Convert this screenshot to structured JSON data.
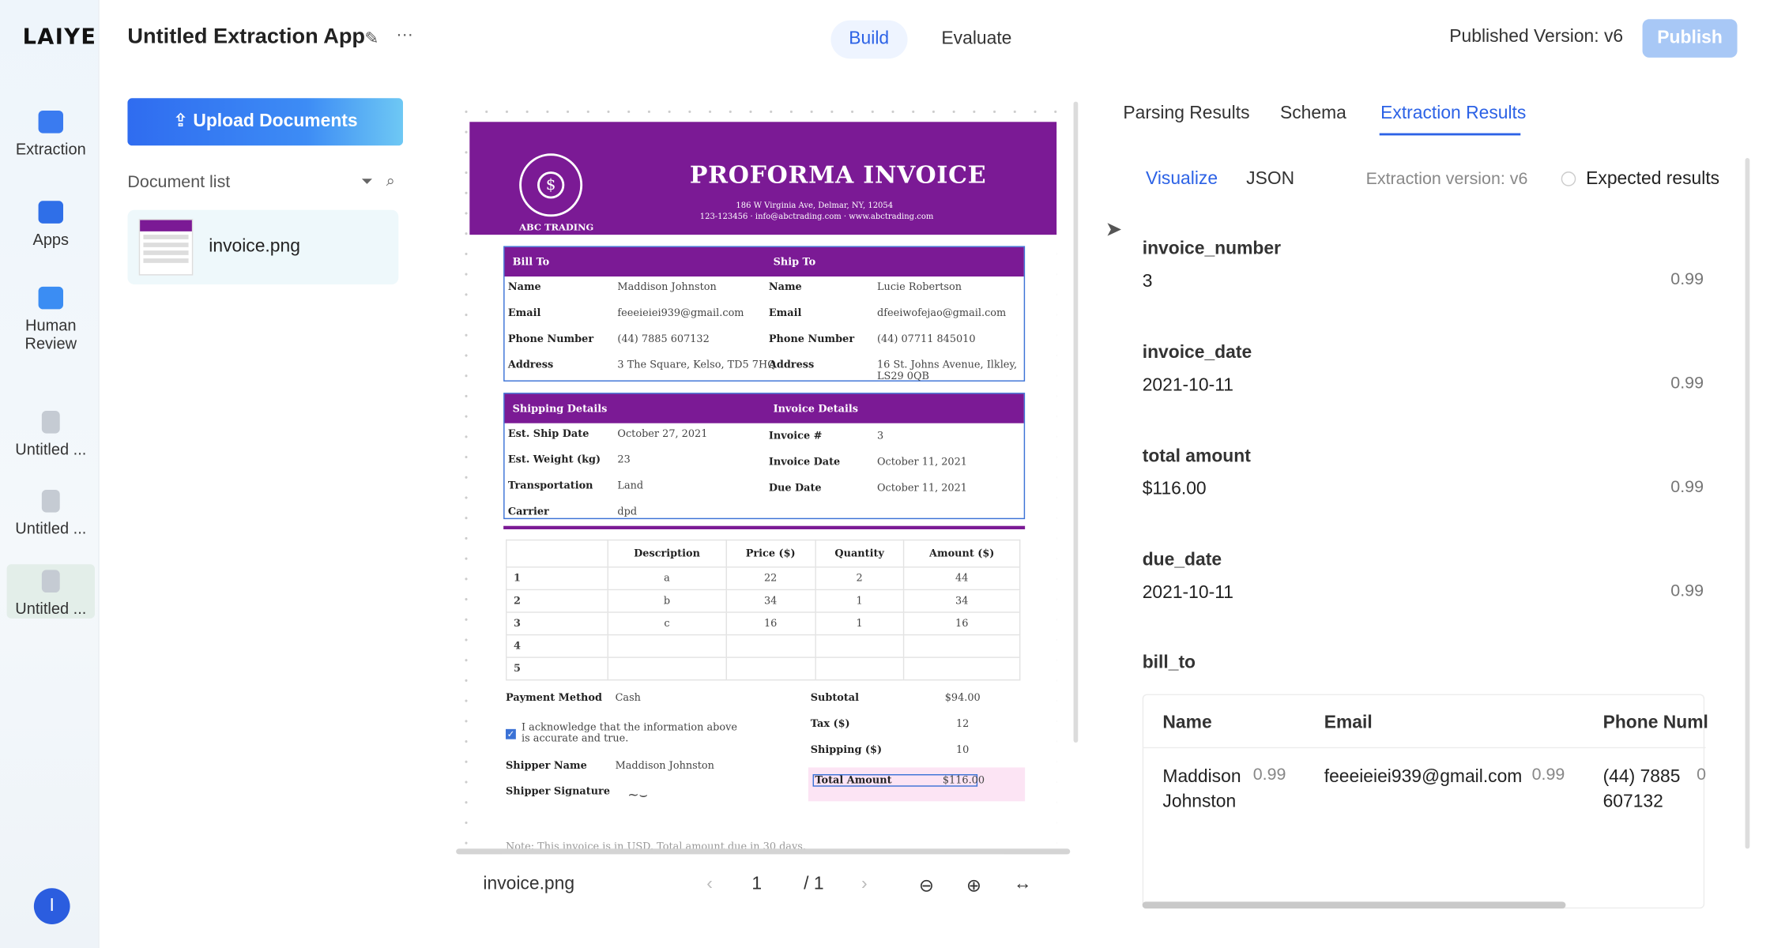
{
  "rail": {
    "logo": "LAIYE",
    "items": [
      {
        "label": "Extraction",
        "icon": "extraction-icon"
      },
      {
        "label": "Apps",
        "icon": "apps-icon"
      },
      {
        "label": "Human Review",
        "icon": "human-review-icon"
      },
      {
        "label": "Untitled ...",
        "icon": "app-doc-icon"
      },
      {
        "label": "Untitled ...",
        "icon": "app-doc-icon"
      },
      {
        "label": "Untitled ...",
        "icon": "app-doc-icon"
      }
    ],
    "avatar": "I"
  },
  "header": {
    "title": "Untitled Extraction App",
    "tabs": [
      "Build",
      "Evaluate"
    ],
    "published": "Published Version: v6",
    "publish_label": "Publish"
  },
  "docs": {
    "upload_label": "Upload Documents",
    "list_title": "Document list",
    "items": [
      {
        "name": "invoice.png"
      }
    ]
  },
  "invoice": {
    "title": "PROFORMA INVOICE",
    "company": "ABC TRADING",
    "address": "186 W Virginia Ave, Delmar, NY, 12054",
    "contact": "123-123456 · info@abctrading.com · www.abctrading.com",
    "bill_to_label": "Bill To",
    "ship_to_label": "Ship To",
    "bill": {
      "name": "Maddison Johnston",
      "email": "feeeieiei939@gmail.com",
      "phone": "(44) 7885 607132",
      "address": "3 The Square, Kelso, TD5 7HQ"
    },
    "ship": {
      "name": "Lucie Robertson",
      "email": "dfeeiwofejao@gmail.com",
      "phone": "(44) 07711 845010",
      "address": "16 St. Johns Avenue, Ilkley, LS29 0QB"
    },
    "labels": {
      "name": "Name",
      "email": "Email",
      "phone": "Phone Number",
      "address": "Address"
    },
    "shipping_label": "Shipping Details",
    "invoice_details_label": "Invoice Details",
    "shipping": {
      "ship_date_l": "Est. Ship Date",
      "ship_date": "October 27, 2021",
      "weight_l": "Est. Weight (kg)",
      "weight": "23",
      "transport_l": "Transportation",
      "transport": "Land",
      "carrier_l": "Carrier",
      "carrier": "dpd"
    },
    "details": {
      "num_l": "Invoice #",
      "num": "3",
      "date_l": "Invoice Date",
      "date": "October 11, 2021",
      "due_l": "Due Date",
      "due": "October 11, 2021"
    },
    "columns": [
      "Description",
      "Price ($)",
      "Quantity",
      "Amount ($)"
    ],
    "rows": [
      [
        "1",
        "a",
        "22",
        "2",
        "44"
      ],
      [
        "2",
        "b",
        "34",
        "1",
        "34"
      ],
      [
        "3",
        "c",
        "16",
        "1",
        "16"
      ],
      [
        "4",
        "",
        "",
        "",
        ""
      ],
      [
        "5",
        "",
        "",
        "",
        ""
      ]
    ],
    "payment_l": "Payment Method",
    "payment": "Cash",
    "ack": "I acknowledge that the information above is accurate and true.",
    "shipper_l": "Shipper Name",
    "shipper": "Maddison Johnston",
    "sig_l": "Shipper Signature",
    "subtotal_l": "Subtotal",
    "subtotal": "$94.00",
    "tax_l": "Tax ($)",
    "tax": "12",
    "shipfee_l": "Shipping ($)",
    "shipfee": "10",
    "total_l": "Total Amount",
    "total": "$116.00",
    "note": "Note: This invoice is in USD. Total amount due in 30 days."
  },
  "viewer": {
    "file": "invoice.png",
    "page": "1",
    "total": "/ 1"
  },
  "results": {
    "tabs": [
      "Parsing Results",
      "Schema",
      "Extraction Results"
    ],
    "subtabs": [
      "Visualize",
      "JSON"
    ],
    "version": "Extraction version: v6",
    "expected": "Expected results",
    "fields": [
      {
        "key": "invoice_number",
        "value": "3",
        "conf": "0.99"
      },
      {
        "key": "invoice_date",
        "value": "2021-10-11",
        "conf": "0.99"
      },
      {
        "key": "total amount",
        "value": "$116.00",
        "conf": "0.99"
      },
      {
        "key": "due_date",
        "value": "2021-10-11",
        "conf": "0.99"
      }
    ],
    "bill_to": {
      "key": "bill_to",
      "headers": [
        "Name",
        "Email",
        "Phone Numl"
      ],
      "row": {
        "name": "Maddison Johnston",
        "name_conf": "0.99",
        "email": "feeeieiei939@gmail.com",
        "email_conf": "0.99",
        "phone": "(44) 7885 607132",
        "phone_conf": "0"
      }
    }
  }
}
